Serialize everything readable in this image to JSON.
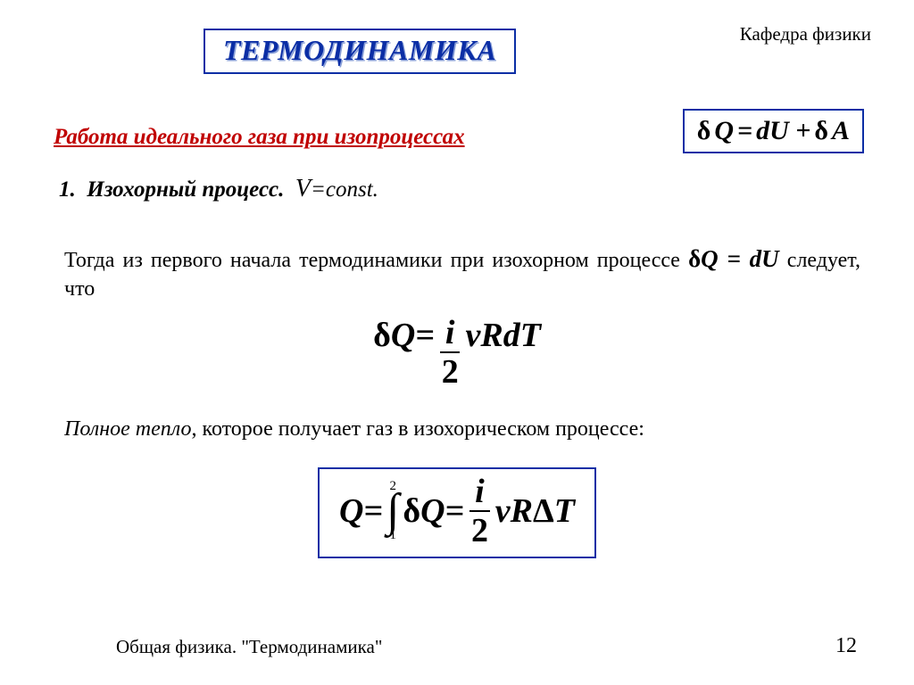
{
  "header": {
    "department": "Кафедра физики",
    "title": "ТЕРМОДИНАМИКА"
  },
  "subheading": "Работа идеального газа при изопроцессах",
  "law_equation": {
    "lhs_delta": "δ",
    "lhs_Q": "Q",
    "eq": " = ",
    "rhs": "dU + ",
    "rhs_delta": "δ",
    "rhs_A": "A"
  },
  "process": {
    "number": "1.",
    "name": "Изохорный процесс.",
    "condition_var": "V",
    "condition_rest": "=const."
  },
  "para1": {
    "t1": "Тогда из первого начала термодинамики при изохорном процессе ",
    "eq_delta": "δ",
    "eq_Q": "Q",
    "eq_rest": " = dU",
    "t2": " следует, что"
  },
  "eq1": {
    "delta": "δ",
    "Q": "Q",
    "eq": " = ",
    "num": "i",
    "den": "2",
    "tail": "νRdT"
  },
  "para2": {
    "italic_part": "Полное тепло",
    "rest": ", которое получает газ в изохорическом процессе:"
  },
  "eq2": {
    "Q": "Q",
    "eq1": " = ",
    "upper": "2",
    "lower": "1",
    "delta": "δ",
    "Q2": "Q",
    "eq2": " = ",
    "num": "i",
    "den": "2",
    "tail_nu": "ν",
    "tail_R": "R",
    "tail_Delta": "Δ",
    "tail_T": "T"
  },
  "footer": {
    "text": "Общая физика. \"Термодинамика\"",
    "page": "12"
  },
  "colors": {
    "accent": "#0b2ea5",
    "red": "#c00000",
    "text": "#000000",
    "bg": "#ffffff"
  }
}
